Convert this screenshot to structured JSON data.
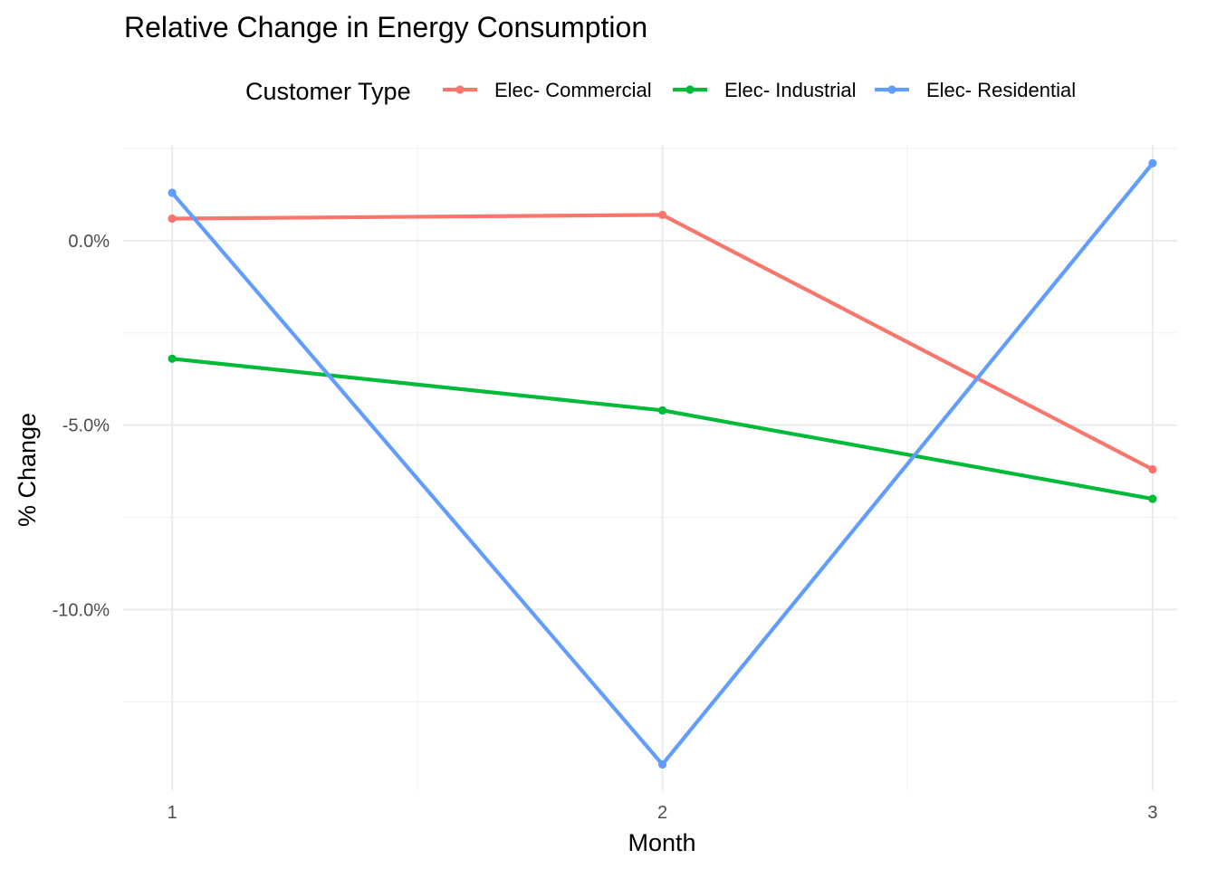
{
  "chart_data": {
    "type": "line",
    "title": "Relative Change in Energy Consumption",
    "xlabel": "Month",
    "ylabel": "% Change",
    "legend_title": "Customer Type",
    "legend_position": "top",
    "grid": true,
    "x": [
      1,
      2,
      3
    ],
    "x_tick_labels": [
      "1",
      "2",
      "3"
    ],
    "y_ticks": [
      0.0,
      -5.0,
      -10.0
    ],
    "y_tick_labels": [
      "0.0%",
      "-5.0%",
      "-10.0%"
    ],
    "xlim": [
      0.9,
      3.05
    ],
    "ylim": [
      -14.9,
      2.6
    ],
    "series": [
      {
        "name": "Elec- Commercial",
        "color": "#F8766D",
        "values": [
          0.6,
          0.7,
          -6.2
        ]
      },
      {
        "name": "Elec- Industrial",
        "color": "#00BA38",
        "values": [
          -3.2,
          -4.6,
          -7.0
        ]
      },
      {
        "name": "Elec- Residential",
        "color": "#619CFF",
        "values": [
          1.3,
          -14.2,
          2.1
        ]
      }
    ]
  }
}
